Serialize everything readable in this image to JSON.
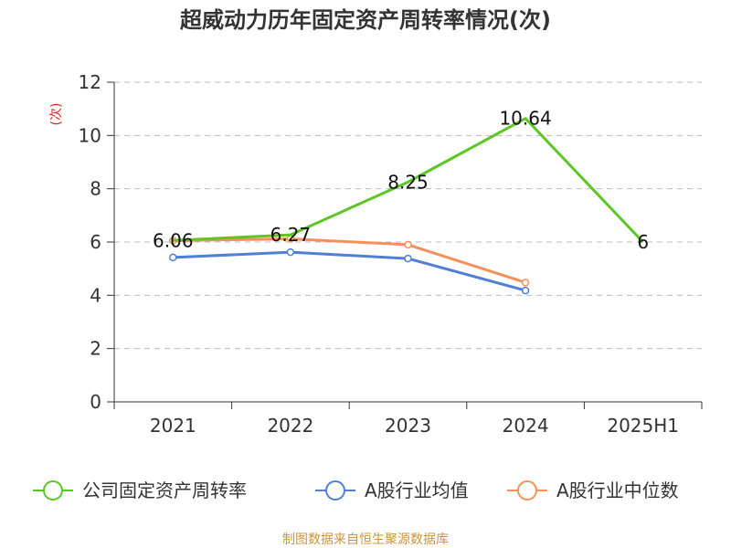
{
  "chart_data": {
    "type": "line",
    "title": "超威动力历年固定资产周转率情况(次)",
    "ylabel": "(次)",
    "xlabel": "",
    "categories": [
      "2021",
      "2022",
      "2023",
      "2024",
      "2025H1"
    ],
    "ylim": [
      0,
      12
    ],
    "yticks": [
      0,
      2,
      4,
      6,
      8,
      10,
      12
    ],
    "grid": true,
    "legend_position": "bottom",
    "series": [
      {
        "name": "公司固定资产周转率",
        "values": [
          6.06,
          6.27,
          8.25,
          10.64,
          6
        ],
        "labels": [
          "6.06",
          "6.27",
          "8.25",
          "10.64",
          "6"
        ],
        "color": "#5bc626",
        "markers": false
      },
      {
        "name": "A股行业均值",
        "values": [
          5.42,
          5.62,
          5.38,
          4.18,
          null
        ],
        "color": "#4f7fd6",
        "markers": true
      },
      {
        "name": "A股行业中位数",
        "values": [
          6.05,
          6.12,
          5.9,
          4.48,
          null
        ],
        "color": "#f5905a",
        "markers": true
      }
    ]
  },
  "source": "制图数据来自恒生聚源数据库"
}
